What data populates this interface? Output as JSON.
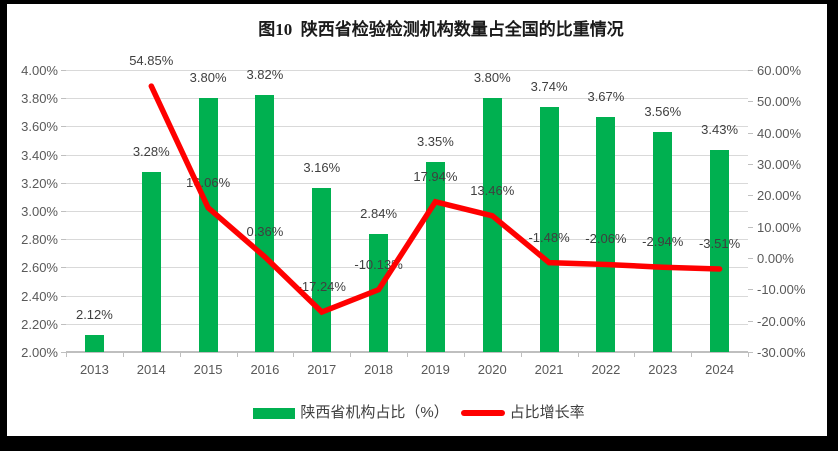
{
  "title": "图10  陕西省检验检测机构数量占全国的比重情况",
  "colors": {
    "bar": "#00B050",
    "line": "#FF0000",
    "grid": "#D9D9D9",
    "axis_line": "#BFBFBF",
    "axis_text": "#595959",
    "data_label_text": "#3F3F3F",
    "frame": "#000000",
    "background": "#FFFFFF"
  },
  "chart_data": {
    "type": "bar",
    "subtype": "combo-bar-line-dual-axis",
    "title": "图10  陕西省检验检测机构数量占全国的比重情况",
    "categories": [
      "2013",
      "2014",
      "2015",
      "2016",
      "2017",
      "2018",
      "2019",
      "2020",
      "2021",
      "2022",
      "2023",
      "2024"
    ],
    "series": [
      {
        "name": "陕西省机构占比（%）",
        "chart": "bar",
        "axis": "left",
        "color": "#00B050",
        "values": [
          2.12,
          3.28,
          3.8,
          3.82,
          3.16,
          2.84,
          3.35,
          3.8,
          3.74,
          3.67,
          3.56,
          3.43
        ],
        "labels": [
          "2.12%",
          "3.28%",
          "3.80%",
          "3.82%",
          "3.16%",
          "2.84%",
          "3.35%",
          "3.80%",
          "3.74%",
          "3.67%",
          "3.56%",
          "3.43%"
        ]
      },
      {
        "name": "占比增长率",
        "chart": "line",
        "axis": "right",
        "color": "#FF0000",
        "values": [
          null,
          54.85,
          16.06,
          0.36,
          -17.24,
          -10.13,
          17.94,
          13.46,
          -1.48,
          -2.06,
          -2.94,
          -3.51
        ],
        "labels": [
          null,
          "54.85%",
          "16.06%",
          "0.36%",
          "-17.24%",
          "-10.13%",
          "17.94%",
          "13.46%",
          "-1.48%",
          "-2.06%",
          "-2.94%",
          "-3.51%"
        ]
      }
    ],
    "left_axis": {
      "min": 2.0,
      "max": 4.0,
      "step": 0.2,
      "ticks": [
        "4.00%",
        "3.80%",
        "3.60%",
        "3.40%",
        "3.20%",
        "3.00%",
        "2.80%",
        "2.60%",
        "2.40%",
        "2.20%",
        "2.00%"
      ]
    },
    "right_axis": {
      "min": -30,
      "max": 60,
      "step": 10,
      "ticks": [
        "60.00%",
        "50.00%",
        "40.00%",
        "30.00%",
        "20.00%",
        "10.00%",
        "0.00%",
        "-10.00%",
        "-20.00%",
        "-30.00%"
      ]
    },
    "grid": true,
    "legend_position": "bottom"
  },
  "legend": {
    "items": [
      {
        "label": "陕西省机构占比（%）",
        "swatch": "bar",
        "color": "#00B050"
      },
      {
        "label": "占比增长率",
        "swatch": "line",
        "color": "#FF0000"
      }
    ]
  }
}
